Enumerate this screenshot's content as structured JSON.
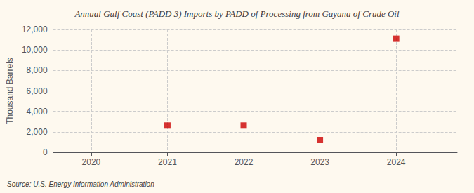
{
  "chart_data": {
    "type": "scatter",
    "title": "Annual Gulf Coast (PADD 3) Imports by PADD of Processing from Guyana of Crude Oil",
    "ylabel": "Thousand Barrels",
    "annotation": "Source: U.S. Energy Information Administration",
    "x": [
      2021,
      2022,
      2023,
      2024
    ],
    "values": [
      2620,
      2620,
      1200,
      11100
    ],
    "color": "#cc0000",
    "marker": "square",
    "xlim": [
      2019.5,
      2024.8
    ],
    "ylim": [
      0,
      12000
    ],
    "xticks": [
      2020,
      2021,
      2022,
      2023,
      2024
    ],
    "yticks": [
      0,
      {
        "value": 2000,
        "label": "2,000"
      },
      {
        "value": 4000,
        "label": "4,000"
      },
      {
        "value": 6000,
        "label": "6,000"
      },
      {
        "value": 8000,
        "label": "8,000"
      },
      {
        "value": 10000,
        "label": "10,000"
      },
      {
        "value": 12000,
        "label": "12,000"
      }
    ],
    "grid": true
  }
}
